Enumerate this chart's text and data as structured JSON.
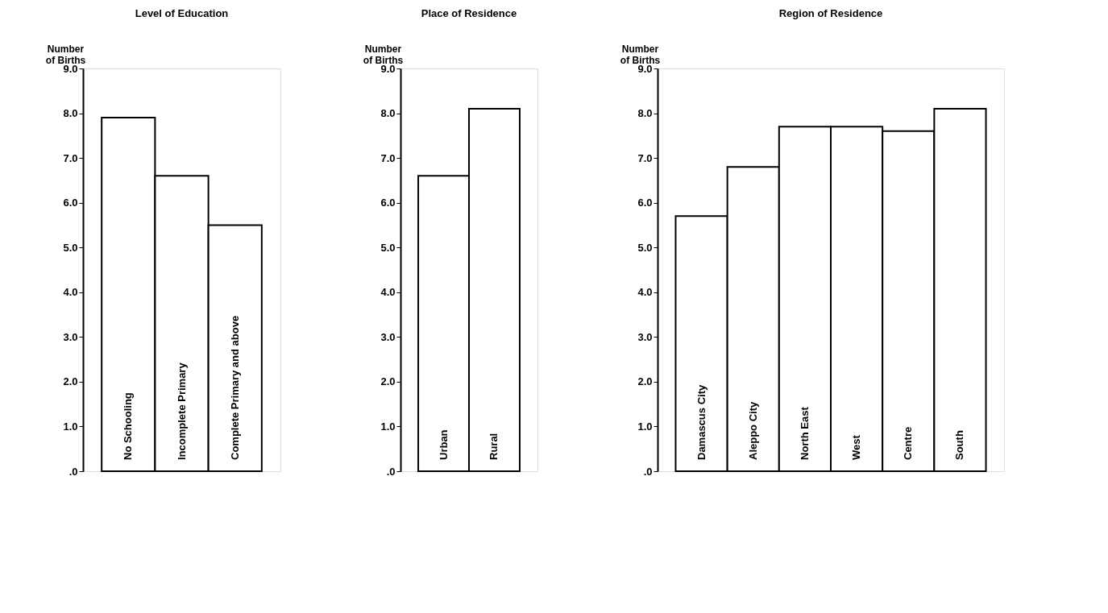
{
  "chart_data": [
    {
      "type": "bar",
      "title": "Level of Education",
      "ylabel": "Number of Births",
      "categories": [
        "No Schooling",
        "Incomplete Primary",
        "Complete  Primary and above"
      ],
      "values": [
        7.9,
        6.6,
        5.5
      ],
      "color": "#ffffff",
      "ylim": [
        0,
        9
      ],
      "yticks": [
        {
          "value": 0,
          "label": ".0"
        },
        {
          "value": 1,
          "label": "1.0"
        },
        {
          "value": 2,
          "label": "2.0"
        },
        {
          "value": 3,
          "label": "3.0"
        },
        {
          "value": 4,
          "label": "4.0"
        },
        {
          "value": 5,
          "label": "5.0"
        },
        {
          "value": 6,
          "label": "6.0"
        },
        {
          "value": 7,
          "label": "7.0"
        },
        {
          "value": 8,
          "label": "8.0"
        },
        {
          "value": 9,
          "label": "9.0"
        }
      ],
      "grid": false,
      "tick_labels": "y"
    },
    {
      "type": "bar",
      "title": "Place of Residence",
      "ylabel": "Number of Births",
      "categories": [
        "Urban",
        "Rural"
      ],
      "values": [
        6.6,
        8.1
      ],
      "color": "#ffffff",
      "ylim": [
        0,
        9
      ],
      "yticks": [
        {
          "value": 0,
          "label": ".0"
        },
        {
          "value": 1,
          "label": "1.0"
        },
        {
          "value": 2,
          "label": "2.0"
        },
        {
          "value": 3,
          "label": "3.0"
        },
        {
          "value": 4,
          "label": "4.0"
        },
        {
          "value": 5,
          "label": "5.0"
        },
        {
          "value": 6,
          "label": "6.0"
        },
        {
          "value": 7,
          "label": "7.0"
        },
        {
          "value": 8,
          "label": "8.0"
        },
        {
          "value": 9,
          "label": "9.0"
        }
      ],
      "grid": false,
      "tick_labels": "y"
    },
    {
      "type": "bar",
      "title": "Region of Residence",
      "ylabel": "Number of Births",
      "categories": [
        "Damascus City",
        "Aleppo City",
        "North East",
        "West",
        "Centre",
        "South"
      ],
      "values": [
        5.7,
        6.8,
        7.7,
        7.7,
        7.6,
        8.1
      ],
      "color": "#ffffff",
      "ylim": [
        0,
        9
      ],
      "yticks": [
        {
          "value": 0,
          "label": ".0"
        },
        {
          "value": 1,
          "label": "1.0"
        },
        {
          "value": 2,
          "label": "2.0"
        },
        {
          "value": 3,
          "label": "3.0"
        },
        {
          "value": 4,
          "label": "4.0"
        },
        {
          "value": 5,
          "label": "5.0"
        },
        {
          "value": 6,
          "label": "6.0"
        },
        {
          "value": 7,
          "label": "7.0"
        },
        {
          "value": 8,
          "label": "8.0"
        },
        {
          "value": 9,
          "label": "9.0"
        }
      ],
      "grid": false,
      "tick_labels": "y"
    }
  ]
}
